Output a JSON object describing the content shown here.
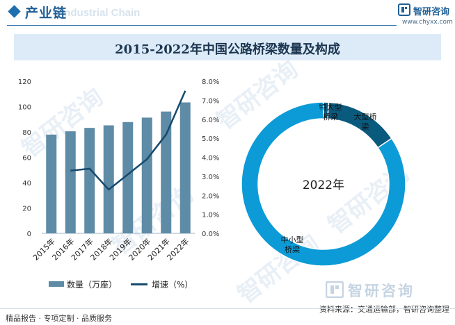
{
  "header": {
    "section_title": "产业链",
    "section_subtitle": "Industrial Chain",
    "brand_name": "智研咨询",
    "site_url": "www.chyxx.com"
  },
  "chart_data": [
    {
      "type": "bar+line",
      "title": "2015-2022年中国公路桥梁数量及构成",
      "categories": [
        "2015年",
        "2016年",
        "2017年",
        "2018年",
        "2019年",
        "2020年",
        "2021年",
        "2022年"
      ],
      "series": [
        {
          "name": "数量（万座）",
          "type": "bar",
          "axis": "left",
          "values": [
            77.9,
            80.5,
            83.2,
            85.2,
            87.8,
            91.3,
            96.1,
            103.3
          ]
        },
        {
          "name": "增速（%）",
          "type": "line",
          "axis": "right",
          "values": [
            null,
            3.3,
            3.4,
            2.3,
            3.1,
            3.9,
            5.2,
            7.5
          ]
        }
      ],
      "left_axis": {
        "ylim": [
          0,
          120
        ],
        "ticks": [
          "0",
          "20",
          "40",
          "60",
          "80",
          "100",
          "120"
        ]
      },
      "right_axis": {
        "ylim": [
          0,
          8
        ],
        "ticks": [
          "0.0%",
          "1.0%",
          "2.0%",
          "3.0%",
          "4.0%",
          "5.0%",
          "6.0%",
          "7.0%",
          "8.0%"
        ]
      },
      "legend": [
        "数量（万座）",
        "增速（%）"
      ]
    },
    {
      "type": "pie",
      "donut": true,
      "center_label": "2022年",
      "slices": [
        {
          "label": "特大型桥梁",
          "value": 1.0
        },
        {
          "label": "大型桥梁",
          "value": 14.6
        },
        {
          "label": "中小型桥梁",
          "value": 84.4
        }
      ]
    }
  ],
  "footer": {
    "services": "精品报告 · 专项定制 · 品质服务",
    "source": "资料来源：交通运输部，智研咨询整理"
  },
  "colors": {
    "bar": "#5e8ba6",
    "line": "#174a6d",
    "donut_main": "#0c9bd7",
    "donut_large": "#0a5a7e",
    "title_band": "#dcebf7"
  }
}
